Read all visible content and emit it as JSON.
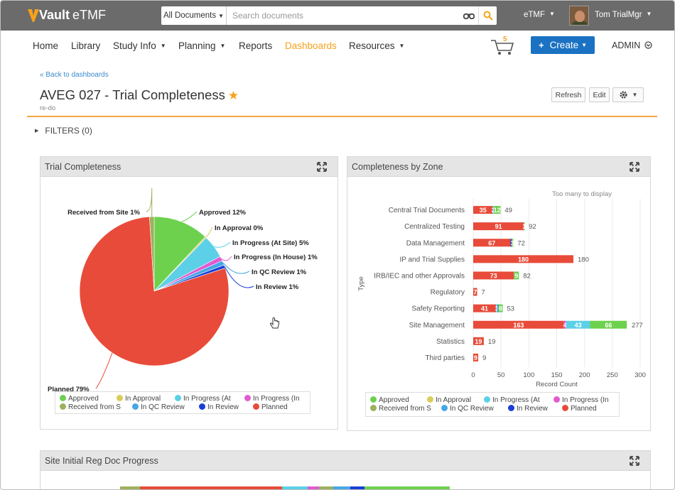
{
  "app": {
    "brand": "Vault",
    "product": "eTMF"
  },
  "search": {
    "scope": "All Documents",
    "placeholder": "Search documents"
  },
  "user": {
    "vault": "eTMF",
    "name": "Tom TrialMgr"
  },
  "nav": {
    "items": [
      {
        "label": "Home",
        "dropdown": false
      },
      {
        "label": "Library",
        "dropdown": false
      },
      {
        "label": "Study Info",
        "dropdown": true
      },
      {
        "label": "Planning",
        "dropdown": true
      },
      {
        "label": "Reports",
        "dropdown": false
      },
      {
        "label": "Dashboards",
        "dropdown": false,
        "active": true
      },
      {
        "label": "Resources",
        "dropdown": true
      }
    ],
    "cart_count": "5",
    "create_label": "Create",
    "admin_label": "ADMIN"
  },
  "header": {
    "back_label": "« Back to dashboards",
    "title": "AVEG 027 - Trial Completeness",
    "subtitle": "re-do",
    "refresh_label": "Refresh",
    "edit_label": "Edit"
  },
  "filters": {
    "label": "FILTERS (0)"
  },
  "colors": {
    "Approved": "#6dd14e",
    "In Approval": "#d8cd5a",
    "In Progress (At Site)": "#5bd0e6",
    "In Progress (In House)": "#e05bd0",
    "Received from Site": "#9cb15c",
    "In QC Review": "#47a7e6",
    "In Review": "#1b3fd6",
    "Planned": "#e84b3a",
    "brand_orange": "#f7a21b",
    "create_blue": "#1b72c2"
  },
  "panels": {
    "pie": {
      "title": "Trial Completeness",
      "legend": [
        "Approved",
        "In Approval",
        "In Progress (At",
        "In Progress (In",
        "Received from S",
        "In QC Review",
        "In Review",
        "Planned"
      ]
    },
    "bar": {
      "title": "Completeness by Zone",
      "legend": [
        "Approved",
        "In Approval",
        "In Progress (At",
        "In Progress (In",
        "Received from S",
        "In QC Review",
        "In Review",
        "Planned"
      ]
    },
    "bottom": {
      "title": "Site Initial Reg Doc Progress"
    }
  },
  "chart_data": [
    {
      "type": "pie",
      "title": "Trial Completeness",
      "slices": [
        {
          "name": "Approved",
          "label": "Approved 12%",
          "value": 12
        },
        {
          "name": "In Approval",
          "label": "In Approval 0%",
          "value": 0.3
        },
        {
          "name": "In Progress (At Site)",
          "label": "In Progress (At Site) 5%",
          "value": 5
        },
        {
          "name": "In Progress (In House)",
          "label": "In Progress (In House) 1%",
          "value": 1
        },
        {
          "name": "In QC Review",
          "label": "In QC Review 1%",
          "value": 1
        },
        {
          "name": "In Review",
          "label": "In Review 1%",
          "value": 0.7
        },
        {
          "name": "Planned",
          "label": "Planned 79%",
          "value": 79
        },
        {
          "name": "Received from Site",
          "label": "Received from Site 1%",
          "value": 1
        }
      ]
    },
    {
      "type": "bar",
      "orientation": "horizontal",
      "stacked": true,
      "title": "Completeness by Zone",
      "xlabel": "Record Count",
      "ylabel": "Type",
      "note": "Too many to display",
      "xticks": [
        0,
        50,
        100,
        150,
        200,
        250,
        300
      ],
      "xlim": [
        0,
        300
      ],
      "categories": [
        "Central Trial Documents",
        "Centralized Testing",
        "Data Management",
        "IP and Trial Supplies",
        "IRB/IEC and other Approvals",
        "Regulatory",
        "Safety Reporting",
        "Site Management",
        "Statistics",
        "Third parties"
      ],
      "totals": [
        49,
        92,
        72,
        180,
        82,
        7,
        53,
        277,
        19,
        9
      ],
      "series": [
        {
          "name": "Planned",
          "values": [
            35,
            91,
            67,
            180,
            73,
            7,
            41,
            163,
            19,
            9
          ],
          "labels": [
            "35",
            "91",
            "67",
            "180",
            "73",
            "7",
            "41",
            "163",
            "19",
            "9"
          ]
        },
        {
          "name": "In Progress (In House)",
          "values": [
            0,
            0,
            0,
            0,
            0,
            0,
            0,
            4,
            0,
            0
          ],
          "labels": [
            "",
            "",
            "",
            "",
            "",
            "",
            "",
            "4",
            "",
            ""
          ]
        },
        {
          "name": "In Progress (At Site)",
          "values": [
            2,
            0,
            0,
            0,
            0,
            0,
            3,
            43,
            0,
            0
          ],
          "labels": [
            "2",
            "",
            "",
            "",
            "",
            "",
            "3",
            "43",
            "",
            ""
          ]
        },
        {
          "name": "In Review",
          "values": [
            0,
            0,
            2,
            0,
            0,
            0,
            1,
            0,
            0,
            0
          ],
          "labels": [
            "",
            "",
            "",
            "",
            "",
            "",
            "",
            "",
            "",
            ""
          ]
        },
        {
          "name": "Approved",
          "values": [
            12,
            1,
            3,
            0,
            9,
            0,
            8,
            66,
            0,
            0
          ],
          "labels": [
            "12",
            "1",
            "3",
            "",
            "9",
            "",
            "8",
            "66",
            "",
            ""
          ]
        }
      ]
    }
  ]
}
